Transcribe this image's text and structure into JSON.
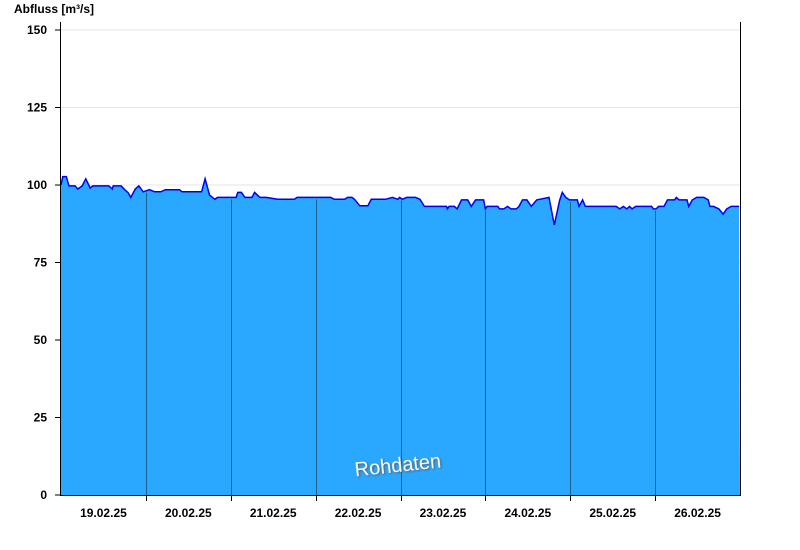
{
  "chart_data": {
    "type": "area",
    "title": "",
    "ylabel": "Abfluss [m³/s]",
    "xlabel": "",
    "ylim": [
      0,
      150
    ],
    "yticks": [
      0,
      25,
      50,
      75,
      100,
      125,
      150
    ],
    "xlim": [
      "19.02.25 00:00",
      "27.02.25 00:00"
    ],
    "xtick_labels": [
      "19.02.25",
      "20.02.25",
      "21.02.25",
      "22.02.25",
      "23.02.25",
      "24.02.25",
      "25.02.25",
      "26.02.25"
    ],
    "grid": "horizontal",
    "watermark": "Rohdaten",
    "colors": {
      "fill": "#2aa8ff",
      "line": "#0000ee",
      "day_lines": "#1f5f8f",
      "grid": "#e6e6e6"
    },
    "series": [
      {
        "points": [
          [
            "19.02.25 00:00",
            100
          ],
          [
            "19.02.25 00:30",
            102.7
          ],
          [
            "19.02.25 01:30",
            102.7
          ],
          [
            "19.02.25 02:15",
            99.7
          ],
          [
            "19.02.25 04:00",
            99.7
          ],
          [
            "19.02.25 04:45",
            98.7
          ],
          [
            "19.02.25 06:00",
            99.7
          ],
          [
            "19.02.25 07:00",
            102
          ],
          [
            "19.02.25 08:15",
            99
          ],
          [
            "19.02.25 09:00",
            99.7
          ],
          [
            "19.02.25 13:30",
            99.7
          ],
          [
            "19.02.25 14:30",
            98.7
          ],
          [
            "19.02.25 14:45",
            99.7
          ],
          [
            "19.02.25 17:00",
            99.7
          ],
          [
            "19.02.25 18:00",
            98.5
          ],
          [
            "19.02.25 19:00",
            97.5
          ],
          [
            "19.02.25 19:45",
            96
          ],
          [
            "19.02.25 21:00",
            98.7
          ],
          [
            "19.02.25 22:00",
            99.7
          ],
          [
            "19.02.25 23:15",
            97.8
          ],
          [
            "20.02.25 01:00",
            98.5
          ],
          [
            "20.02.25 02:30",
            97.8
          ],
          [
            "20.02.25 04:15",
            97.8
          ],
          [
            "20.02.25 05:30",
            98.5
          ],
          [
            "20.02.25 09:30",
            98.5
          ],
          [
            "20.02.25 10:15",
            97.8
          ],
          [
            "20.02.25 15:45",
            97.8
          ],
          [
            "20.02.25 16:45",
            102
          ],
          [
            "20.02.25 18:00",
            96.8
          ],
          [
            "20.02.25 19:30",
            95.4
          ],
          [
            "20.02.25 20:15",
            96
          ],
          [
            "21.02.25 01:30",
            96
          ],
          [
            "21.02.25 02:00",
            97.6
          ],
          [
            "21.02.25 03:00",
            97.6
          ],
          [
            "21.02.25 04:00",
            96
          ],
          [
            "21.02.25 06:00",
            96
          ],
          [
            "21.02.25 06:45",
            97.6
          ],
          [
            "21.02.25 08:15",
            96
          ],
          [
            "21.02.25 10:00",
            96
          ],
          [
            "21.02.25 13:15",
            95.4
          ],
          [
            "21.02.25 18:00",
            95.4
          ],
          [
            "21.02.25 18:45",
            96
          ],
          [
            "22.02.25 04:15",
            96
          ],
          [
            "22.02.25 05:15",
            95.4
          ],
          [
            "22.02.25 08:15",
            95.4
          ],
          [
            "22.02.25 09:00",
            96
          ],
          [
            "22.02.25 10:15",
            96
          ],
          [
            "22.02.25 11:00",
            95.4
          ],
          [
            "22.02.25 12:30",
            93.3
          ],
          [
            "22.02.25 14:45",
            93.3
          ],
          [
            "22.02.25 15:45",
            95.4
          ],
          [
            "22.02.25 19:45",
            95.4
          ],
          [
            "22.02.25 21:45",
            96
          ],
          [
            "22.02.25 23:15",
            95.4
          ],
          [
            "22.02.25 23:45",
            96
          ],
          [
            "23.02.25 00:30",
            95.4
          ],
          [
            "23.02.25 01:45",
            96
          ],
          [
            "23.02.25 04:15",
            96
          ],
          [
            "23.02.25 05:30",
            95.4
          ],
          [
            "23.02.25 06:45",
            93.1
          ],
          [
            "23.02.25 13:00",
            93.1
          ],
          [
            "23.02.25 13:15",
            92.3
          ],
          [
            "23.02.25 13:45",
            93.1
          ],
          [
            "23.02.25 15:15",
            93.1
          ],
          [
            "23.02.25 16:00",
            92.3
          ],
          [
            "23.02.25 17:15",
            95.2
          ],
          [
            "23.02.25 19:00",
            95.2
          ],
          [
            "23.02.25 20:00",
            93.1
          ],
          [
            "23.02.25 21:15",
            95.2
          ],
          [
            "23.02.25 23:30",
            95.2
          ],
          [
            "24.02.25 00:00",
            92.3
          ],
          [
            "24.02.25 00:30",
            93.1
          ],
          [
            "24.02.25 03:30",
            93.1
          ],
          [
            "24.02.25 04:00",
            92.3
          ],
          [
            "24.02.25 05:15",
            92.3
          ],
          [
            "24.02.25 06:15",
            93.1
          ],
          [
            "24.02.25 07:15",
            92.3
          ],
          [
            "24.02.25 08:45",
            92.3
          ],
          [
            "24.02.25 09:30",
            93.1
          ],
          [
            "24.02.25 10:30",
            95.2
          ],
          [
            "24.02.25 11:45",
            95.2
          ],
          [
            "24.02.25 13:00",
            93.1
          ],
          [
            "24.02.25 14:30",
            95.2
          ],
          [
            "24.02.25 18:00",
            96
          ],
          [
            "24.02.25 19:30",
            87.1
          ],
          [
            "24.02.25 21:00",
            95
          ],
          [
            "24.02.25 21:45",
            97.6
          ],
          [
            "24.02.25 22:45",
            96
          ],
          [
            "24.02.25 23:45",
            95.2
          ],
          [
            "25.02.25 02:00",
            95.2
          ],
          [
            "25.02.25 02:30",
            93.1
          ],
          [
            "25.02.25 03:30",
            95.2
          ],
          [
            "25.02.25 04:15",
            93.1
          ],
          [
            "25.02.25 13:00",
            93.1
          ],
          [
            "25.02.25 14:00",
            92.3
          ],
          [
            "25.02.25 15:00",
            93.1
          ],
          [
            "25.02.25 16:00",
            92.3
          ],
          [
            "25.02.25 16:45",
            93.1
          ],
          [
            "25.02.25 17:30",
            92.3
          ],
          [
            "25.02.25 18:30",
            93.1
          ],
          [
            "25.02.25 23:00",
            93.1
          ],
          [
            "25.02.25 23:30",
            92.3
          ],
          [
            "26.02.25 00:15",
            92.3
          ],
          [
            "26.02.25 01:00",
            93.1
          ],
          [
            "26.02.25 02:30",
            93.1
          ],
          [
            "26.02.25 03:30",
            95.2
          ],
          [
            "26.02.25 05:30",
            95.2
          ],
          [
            "26.02.25 06:00",
            96
          ],
          [
            "26.02.25 06:45",
            95.2
          ],
          [
            "26.02.25 09:00",
            95.2
          ],
          [
            "26.02.25 09:30",
            93.1
          ],
          [
            "26.02.25 10:30",
            95.2
          ],
          [
            "26.02.25 11:45",
            96
          ],
          [
            "26.02.25 13:45",
            96
          ],
          [
            "26.02.25 15:00",
            95.2
          ],
          [
            "26.02.25 15:30",
            93.1
          ],
          [
            "26.02.25 16:30",
            93.1
          ],
          [
            "26.02.25 18:00",
            92.3
          ],
          [
            "26.02.25 19:15",
            90.6
          ],
          [
            "26.02.25 20:15",
            92.3
          ],
          [
            "26.02.25 21:30",
            93.1
          ],
          [
            "26.02.25 23:45",
            93.1
          ]
        ]
      }
    ]
  }
}
